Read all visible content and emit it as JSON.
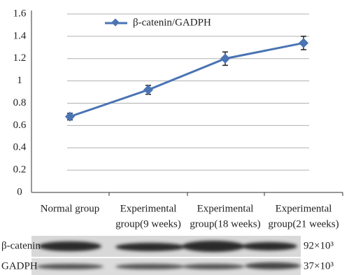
{
  "chart_data": {
    "type": "line",
    "categories": [
      [
        "Normal group"
      ],
      [
        "Experimental",
        "group(9 weeks)"
      ],
      [
        "Experimental",
        "group(18 weeks)"
      ],
      [
        "Experimental",
        "group(21 weeks)"
      ]
    ],
    "series": [
      {
        "name": "β-catenin/GADPH",
        "color": "#4a74b4",
        "values": [
          0.68,
          0.92,
          1.2,
          1.34
        ],
        "errors": [
          0.03,
          0.04,
          0.06,
          0.06
        ]
      }
    ],
    "ylim": [
      0,
      1.6
    ],
    "yticks": [
      0,
      0.2,
      0.4,
      0.6,
      0.8,
      1.0,
      1.2,
      1.4,
      1.6
    ],
    "grid": true
  },
  "blot": {
    "rows": [
      {
        "label": "β-catenin",
        "size": "92×10³"
      },
      {
        "label": "GADPH",
        "size": "37×10³"
      }
    ]
  }
}
